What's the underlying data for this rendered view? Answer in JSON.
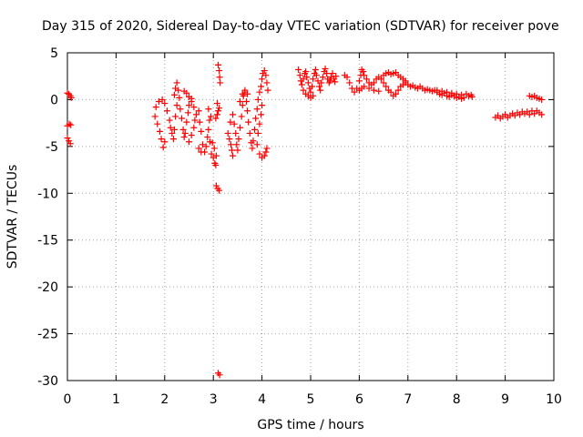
{
  "chart_data": {
    "type": "scatter",
    "title": "Day 315 of 2020, Sidereal Day-to-day VTEC variation (SDTVAR) for receiver pove",
    "xlabel": "GPS time / hours",
    "ylabel": "SDTVAR / TECUs",
    "xlim": [
      0,
      10
    ],
    "ylim": [
      -30,
      5
    ],
    "xticks": [
      0,
      1,
      2,
      3,
      4,
      5,
      6,
      7,
      8,
      9,
      10
    ],
    "yticks": [
      5,
      0,
      -5,
      -10,
      -15,
      -20,
      -25,
      -30
    ],
    "grid": true,
    "marker": "+",
    "color": "#ff0000",
    "series": [
      {
        "points": [
          [
            0.0,
            0.7
          ],
          [
            0.03,
            0.6
          ],
          [
            0.06,
            0.4
          ],
          [
            0.08,
            0.2
          ],
          [
            0.0,
            -2.8
          ],
          [
            0.04,
            -2.6
          ],
          [
            0.07,
            -2.7
          ],
          [
            0.0,
            -4.1
          ],
          [
            0.03,
            -4.4
          ],
          [
            0.06,
            -4.7
          ],
          [
            1.8,
            -1.8
          ],
          [
            1.85,
            -2.6
          ],
          [
            1.9,
            -3.4
          ],
          [
            1.93,
            -4.2
          ],
          [
            1.97,
            -5.1
          ],
          [
            2.0,
            -4.5
          ],
          [
            1.82,
            -0.8
          ],
          [
            1.88,
            -0.2
          ],
          [
            1.95,
            0.0
          ],
          [
            2.0,
            -0.4
          ],
          [
            2.05,
            -1.2
          ],
          [
            2.1,
            -2.2
          ],
          [
            2.12,
            -3.0
          ],
          [
            2.15,
            -3.6
          ],
          [
            2.18,
            -4.2
          ],
          [
            2.2,
            -3.2
          ],
          [
            2.22,
            -1.8
          ],
          [
            2.25,
            -0.6
          ],
          [
            2.2,
            0.5
          ],
          [
            2.22,
            1.2
          ],
          [
            2.25,
            1.8
          ],
          [
            2.28,
            1.0
          ],
          [
            2.3,
            0.2
          ],
          [
            2.32,
            -1.0
          ],
          [
            2.35,
            -2.0
          ],
          [
            2.38,
            -3.2
          ],
          [
            2.4,
            -4.0
          ],
          [
            2.42,
            -3.6
          ],
          [
            2.45,
            -2.4
          ],
          [
            2.48,
            -1.4
          ],
          [
            2.5,
            -0.6
          ],
          [
            2.55,
            -0.2
          ],
          [
            2.6,
            -0.8
          ],
          [
            2.4,
            0.9
          ],
          [
            2.45,
            0.7
          ],
          [
            2.5,
            0.3
          ],
          [
            2.55,
            0.1
          ],
          [
            2.5,
            -4.5
          ],
          [
            2.55,
            -3.8
          ],
          [
            2.6,
            -3.0
          ],
          [
            2.62,
            -2.2
          ],
          [
            2.65,
            -1.6
          ],
          [
            2.7,
            -1.2
          ],
          [
            2.72,
            -2.4
          ],
          [
            2.75,
            -3.4
          ],
          [
            2.78,
            -4.8
          ],
          [
            2.82,
            -5.6
          ],
          [
            2.85,
            -5.0
          ],
          [
            2.88,
            -4.0
          ],
          [
            2.9,
            -3.2
          ],
          [
            2.93,
            -4.5
          ],
          [
            2.96,
            -5.8
          ],
          [
            3.0,
            -6.2
          ],
          [
            3.03,
            -6.8
          ],
          [
            3.05,
            -7.0
          ],
          [
            3.06,
            -6.0
          ],
          [
            3.02,
            -5.2
          ],
          [
            2.98,
            -4.6
          ],
          [
            2.92,
            -2.2
          ],
          [
            2.95,
            -1.8
          ],
          [
            2.9,
            -1.0
          ],
          [
            2.7,
            -5.2
          ],
          [
            2.75,
            -5.6
          ],
          [
            3.05,
            -2.0
          ],
          [
            3.08,
            -1.6
          ],
          [
            3.1,
            -1.2
          ],
          [
            3.1,
            3.7
          ],
          [
            3.12,
            3.1
          ],
          [
            3.13,
            2.4
          ],
          [
            3.14,
            1.8
          ],
          [
            3.08,
            -0.4
          ],
          [
            3.12,
            -0.9
          ],
          [
            3.06,
            -9.2
          ],
          [
            3.09,
            -9.5
          ],
          [
            3.12,
            -9.7
          ],
          [
            3.1,
            -29.2
          ],
          [
            3.13,
            -29.4
          ],
          [
            3.3,
            -3.6
          ],
          [
            3.33,
            -4.2
          ],
          [
            3.36,
            -4.8
          ],
          [
            3.38,
            -5.4
          ],
          [
            3.4,
            -6.0
          ],
          [
            3.35,
            -2.4
          ],
          [
            3.4,
            -1.6
          ],
          [
            3.43,
            -2.6
          ],
          [
            3.46,
            -3.6
          ],
          [
            3.48,
            -4.8
          ],
          [
            3.5,
            -5.4
          ],
          [
            3.52,
            -4.2
          ],
          [
            3.55,
            -3.0
          ],
          [
            3.58,
            -1.8
          ],
          [
            3.6,
            -0.6
          ],
          [
            3.62,
            0.4
          ],
          [
            3.65,
            0.8
          ],
          [
            3.68,
            -0.2
          ],
          [
            3.7,
            -1.2
          ],
          [
            3.72,
            -2.4
          ],
          [
            3.75,
            -3.6
          ],
          [
            3.78,
            -4.6
          ],
          [
            3.8,
            -5.2
          ],
          [
            3.82,
            -4.4
          ],
          [
            3.85,
            -3.2
          ],
          [
            3.87,
            -2.0
          ],
          [
            3.9,
            -1.0
          ],
          [
            3.92,
            0.0
          ],
          [
            3.95,
            0.8
          ],
          [
            3.98,
            1.4
          ],
          [
            4.0,
            2.2
          ],
          [
            4.02,
            2.8
          ],
          [
            4.05,
            3.1
          ],
          [
            4.08,
            2.6
          ],
          [
            4.1,
            1.8
          ],
          [
            4.12,
            1.0
          ],
          [
            4.0,
            -0.6
          ],
          [
            3.98,
            -1.6
          ],
          [
            3.95,
            -2.6
          ],
          [
            3.92,
            -3.6
          ],
          [
            3.9,
            -4.8
          ],
          [
            3.95,
            -5.8
          ],
          [
            4.0,
            -6.2
          ],
          [
            4.05,
            -6.0
          ],
          [
            4.08,
            -5.6
          ],
          [
            4.1,
            -5.2
          ],
          [
            3.55,
            -0.2
          ],
          [
            3.6,
            0.6
          ],
          [
            3.65,
            1.0
          ],
          [
            3.7,
            0.6
          ],
          [
            4.75,
            3.2
          ],
          [
            4.78,
            2.6
          ],
          [
            4.8,
            2.0
          ],
          [
            4.82,
            1.6
          ],
          [
            4.85,
            2.2
          ],
          [
            4.88,
            2.8
          ],
          [
            4.9,
            3.0
          ],
          [
            4.92,
            2.4
          ],
          [
            4.95,
            1.8
          ],
          [
            4.98,
            1.2
          ],
          [
            5.0,
            0.8
          ],
          [
            5.03,
            1.4
          ],
          [
            5.05,
            2.2
          ],
          [
            5.08,
            2.8
          ],
          [
            5.1,
            3.2
          ],
          [
            5.12,
            2.6
          ],
          [
            5.15,
            2.0
          ],
          [
            5.18,
            1.4
          ],
          [
            5.2,
            1.0
          ],
          [
            5.22,
            1.8
          ],
          [
            5.25,
            2.4
          ],
          [
            5.28,
            3.0
          ],
          [
            5.3,
            3.3
          ],
          [
            5.33,
            2.8
          ],
          [
            5.35,
            2.2
          ],
          [
            5.38,
            1.8
          ],
          [
            5.4,
            2.0
          ],
          [
            5.42,
            2.4
          ],
          [
            5.45,
            2.8
          ],
          [
            5.48,
            2.2
          ],
          [
            5.5,
            1.9
          ],
          [
            5.52,
            2.5
          ],
          [
            4.85,
            1.0
          ],
          [
            4.9,
            0.6
          ],
          [
            4.95,
            0.4
          ],
          [
            5.0,
            0.2
          ],
          [
            5.05,
            0.4
          ],
          [
            5.7,
            2.6
          ],
          [
            5.75,
            2.4
          ],
          [
            5.8,
            1.8
          ],
          [
            5.85,
            1.2
          ],
          [
            5.9,
            0.8
          ],
          [
            5.95,
            1.2
          ],
          [
            6.0,
            2.0
          ],
          [
            6.03,
            2.6
          ],
          [
            6.05,
            3.2
          ],
          [
            6.08,
            3.0
          ],
          [
            6.1,
            2.6
          ],
          [
            6.15,
            2.2
          ],
          [
            6.2,
            1.8
          ],
          [
            6.25,
            1.6
          ],
          [
            6.3,
            1.8
          ],
          [
            6.35,
            2.2
          ],
          [
            6.4,
            2.4
          ],
          [
            6.45,
            2.2
          ],
          [
            6.5,
            1.8
          ],
          [
            6.55,
            1.4
          ],
          [
            6.6,
            1.0
          ],
          [
            6.65,
            0.8
          ],
          [
            6.7,
            0.4
          ],
          [
            6.75,
            0.6
          ],
          [
            6.8,
            1.0
          ],
          [
            6.85,
            1.4
          ],
          [
            6.9,
            1.6
          ],
          [
            6.95,
            1.8
          ],
          [
            6.0,
            1.0
          ],
          [
            6.05,
            1.2
          ],
          [
            6.1,
            1.4
          ],
          [
            6.2,
            1.2
          ],
          [
            6.3,
            1.0
          ],
          [
            6.4,
            0.9
          ],
          [
            6.5,
            2.6
          ],
          [
            6.55,
            2.8
          ],
          [
            6.6,
            2.9
          ],
          [
            6.65,
            2.7
          ],
          [
            6.7,
            2.8
          ],
          [
            6.75,
            2.9
          ],
          [
            6.8,
            2.6
          ],
          [
            6.85,
            2.4
          ],
          [
            6.9,
            2.2
          ],
          [
            6.95,
            2.0
          ],
          [
            7.0,
            1.6
          ],
          [
            7.05,
            1.4
          ],
          [
            7.1,
            1.5
          ],
          [
            7.15,
            1.3
          ],
          [
            7.2,
            1.2
          ],
          [
            7.25,
            1.4
          ],
          [
            7.3,
            1.2
          ],
          [
            7.35,
            1.0
          ],
          [
            7.4,
            1.1
          ],
          [
            7.45,
            1.0
          ],
          [
            7.5,
            0.9
          ],
          [
            7.55,
            1.0
          ],
          [
            7.6,
            0.8
          ],
          [
            7.65,
            0.6
          ],
          [
            7.7,
            0.5
          ],
          [
            7.75,
            0.7
          ],
          [
            7.8,
            0.4
          ],
          [
            7.85,
            0.3
          ],
          [
            7.9,
            0.5
          ],
          [
            7.95,
            0.4
          ],
          [
            8.0,
            0.6
          ],
          [
            8.05,
            0.3
          ],
          [
            8.1,
            0.5
          ],
          [
            8.15,
            0.2
          ],
          [
            8.2,
            0.6
          ],
          [
            8.25,
            0.4
          ],
          [
            8.3,
            0.5
          ],
          [
            8.32,
            0.3
          ],
          [
            7.6,
            1.0
          ],
          [
            7.7,
            0.9
          ],
          [
            7.8,
            0.8
          ],
          [
            7.9,
            0.7
          ],
          [
            8.0,
            0.2
          ],
          [
            8.1,
            0.1
          ],
          [
            8.8,
            -1.9
          ],
          [
            8.85,
            -1.7
          ],
          [
            8.9,
            -2.0
          ],
          [
            8.95,
            -1.8
          ],
          [
            9.0,
            -1.6
          ],
          [
            9.05,
            -1.9
          ],
          [
            9.1,
            -1.7
          ],
          [
            9.15,
            -1.5
          ],
          [
            9.2,
            -1.7
          ],
          [
            9.25,
            -1.4
          ],
          [
            9.3,
            -1.6
          ],
          [
            9.35,
            -1.3
          ],
          [
            9.4,
            -1.5
          ],
          [
            9.45,
            -1.3
          ],
          [
            9.5,
            -1.6
          ],
          [
            9.55,
            -1.2
          ],
          [
            9.6,
            -1.5
          ],
          [
            9.65,
            -1.2
          ],
          [
            9.7,
            -1.4
          ],
          [
            9.75,
            -1.6
          ],
          [
            9.5,
            0.4
          ],
          [
            9.55,
            0.3
          ],
          [
            9.6,
            0.4
          ],
          [
            9.65,
            0.2
          ],
          [
            9.7,
            0.1
          ],
          [
            9.75,
            0.0
          ]
        ]
      }
    ]
  }
}
